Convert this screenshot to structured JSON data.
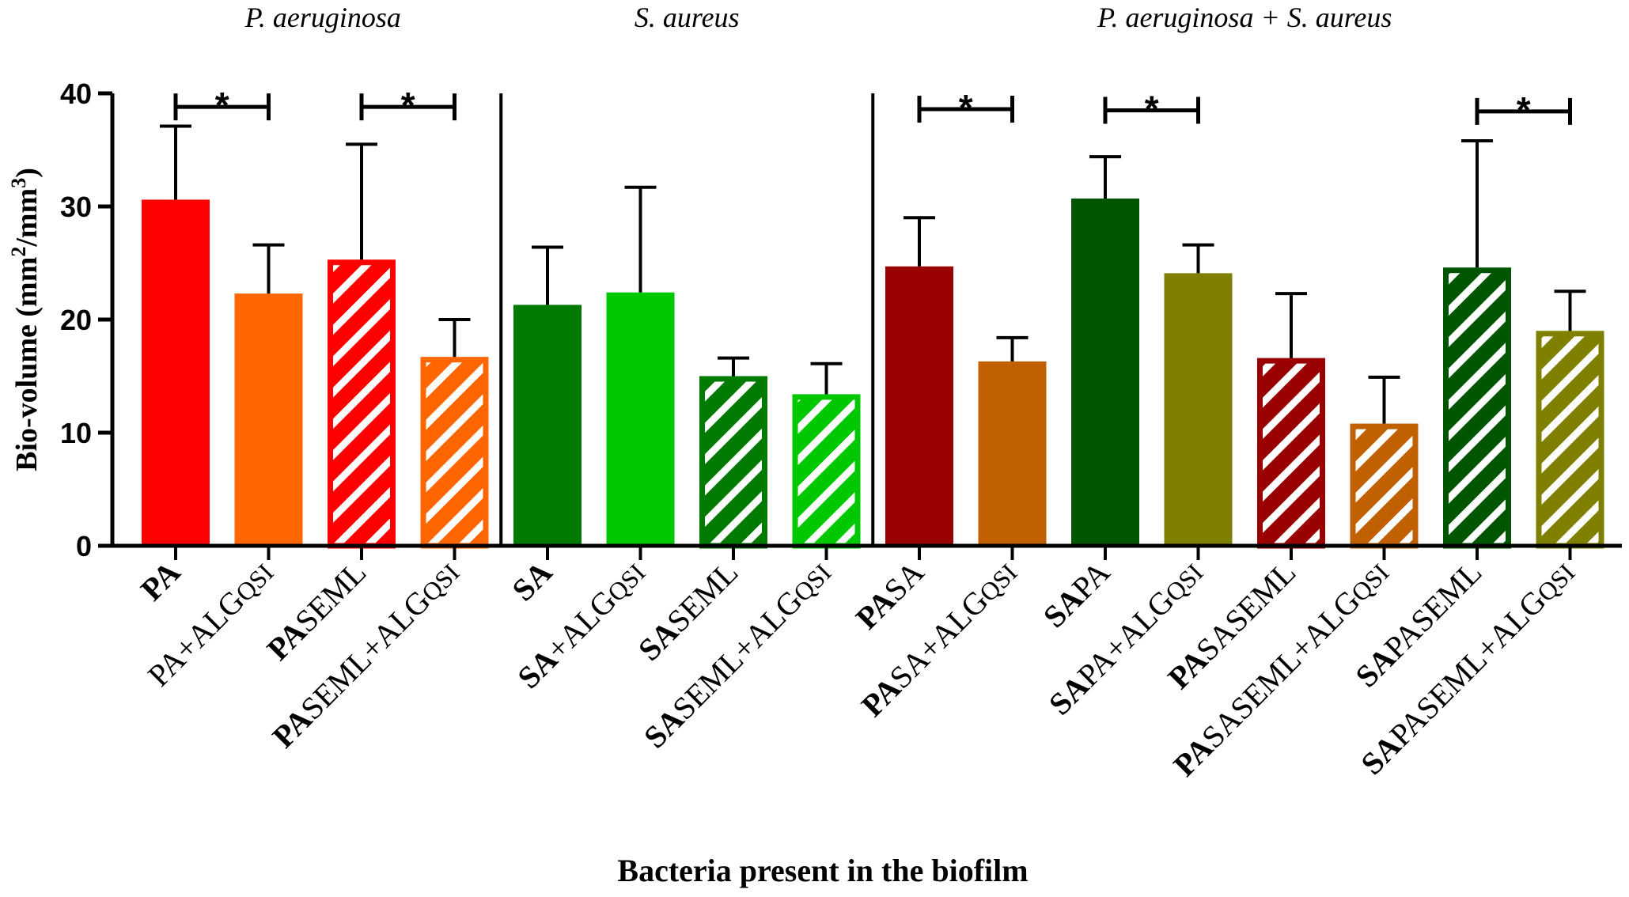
{
  "chart_data": {
    "type": "bar",
    "title": "",
    "xlabel": "Bacteria present in the biofilm",
    "ylabel": "Bio-volume (mm²/mm³)",
    "ylabel_parts": {
      "prefix": "Bio-volume (mm",
      "sup1": "2",
      "mid": "/mm",
      "sup2": "3",
      "suffix": ")"
    },
    "ylim": [
      0,
      40
    ],
    "yticks": [
      0,
      10,
      20,
      30,
      40
    ],
    "groups": [
      {
        "label": "P. aeruginosa",
        "start": 0,
        "end": 3
      },
      {
        "label": "S. aureus",
        "start": 4,
        "end": 7
      },
      {
        "label": "P. aeruginosa + S. aureus",
        "start": 8,
        "end": 15
      }
    ],
    "categories": [
      "PA",
      "PA+ALGQSI",
      "PASEML",
      "PASEML+ALGQSI",
      "SA",
      "SA+ALGQSI",
      "SASEML",
      "SASEML+ALGQSI",
      "PASA",
      "PASA+ALGQSI",
      "SAPA",
      "SAPA+ALGQSI",
      "PASASEML",
      "PASASEML+ALGQSI",
      "SAPASEML",
      "SAPASEML+ALGQSI"
    ],
    "label_parts": [
      [
        {
          "t": "PA",
          "b": true
        }
      ],
      [
        {
          "t": "PA+ALG",
          "b": false
        },
        {
          "t": "QSI",
          "b": false,
          "sc": true
        }
      ],
      [
        {
          "t": "PA",
          "b": true
        },
        {
          "t": "SEML",
          "b": false
        }
      ],
      [
        {
          "t": "PA",
          "b": true
        },
        {
          "t": "SEML+ALG",
          "b": false
        },
        {
          "t": "QSI",
          "b": false,
          "sc": true
        }
      ],
      [
        {
          "t": "SA",
          "b": true
        }
      ],
      [
        {
          "t": "SA",
          "b": true
        },
        {
          "t": "+ALG",
          "b": false
        },
        {
          "t": "QSI",
          "b": false,
          "sc": true
        }
      ],
      [
        {
          "t": "SA",
          "b": true
        },
        {
          "t": "SEML",
          "b": false
        }
      ],
      [
        {
          "t": "SA",
          "b": true
        },
        {
          "t": "SEML+ALG",
          "b": false
        },
        {
          "t": "QSI",
          "b": false,
          "sc": true
        }
      ],
      [
        {
          "t": "PA",
          "b": true
        },
        {
          "t": "SA",
          "b": false
        }
      ],
      [
        {
          "t": "PA",
          "b": true
        },
        {
          "t": "SA+ALG",
          "b": false
        },
        {
          "t": "QSI",
          "b": false,
          "sc": true
        }
      ],
      [
        {
          "t": "SA",
          "b": true
        },
        {
          "t": "PA",
          "b": false
        }
      ],
      [
        {
          "t": "SA",
          "b": true
        },
        {
          "t": "PA+ALG",
          "b": false
        },
        {
          "t": "QSI",
          "b": false,
          "sc": true
        }
      ],
      [
        {
          "t": "PA",
          "b": true
        },
        {
          "t": "SASEML",
          "b": false
        }
      ],
      [
        {
          "t": "PA",
          "b": true
        },
        {
          "t": "SASEML+ALG",
          "b": false
        },
        {
          "t": "QSI",
          "b": false,
          "sc": true
        }
      ],
      [
        {
          "t": "SA",
          "b": true
        },
        {
          "t": "PASEML",
          "b": false
        }
      ],
      [
        {
          "t": "SA",
          "b": true
        },
        {
          "t": "PASEML+ALG",
          "b": false
        },
        {
          "t": "QSI",
          "b": false,
          "sc": true
        }
      ]
    ],
    "values": [
      30.6,
      22.3,
      25.3,
      16.7,
      21.3,
      22.4,
      15.0,
      13.4,
      24.7,
      16.3,
      30.7,
      24.1,
      16.6,
      10.8,
      24.6,
      19.0
    ],
    "error_upper": [
      37.1,
      26.6,
      35.5,
      20.0,
      26.4,
      31.7,
      16.6,
      16.1,
      29.0,
      18.4,
      34.4,
      26.6,
      22.3,
      14.9,
      35.8,
      22.5
    ],
    "hatched": [
      false,
      false,
      true,
      true,
      false,
      false,
      true,
      true,
      false,
      false,
      false,
      false,
      true,
      true,
      true,
      true
    ],
    "colors": [
      "#ff0000",
      "#ff6600",
      "#ff0000",
      "#ff6600",
      "#007a00",
      "#00c800",
      "#007a00",
      "#00c800",
      "#990000",
      "#c06000",
      "#005500",
      "#808000",
      "#990000",
      "#c06000",
      "#005500",
      "#808000"
    ],
    "significance": [
      {
        "from": 0,
        "to": 1,
        "label": "*",
        "level": 38.8
      },
      {
        "from": 2,
        "to": 3,
        "label": "*",
        "level": 38.8
      },
      {
        "from": 8,
        "to": 9,
        "label": "*",
        "level": 38.6
      },
      {
        "from": 10,
        "to": 11,
        "label": "*",
        "level": 38.5
      },
      {
        "from": 14,
        "to": 15,
        "label": "*",
        "level": 38.4
      }
    ],
    "axis_color": "#000000"
  }
}
